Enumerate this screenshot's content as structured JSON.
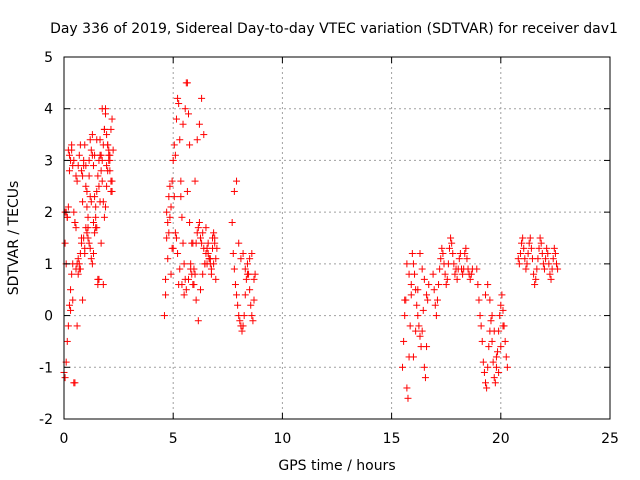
{
  "chart_data": {
    "type": "scatter",
    "title": "Day 336 of 2019, Sidereal Day-to-day VTEC variation (SDTVAR) for receiver dav1",
    "xlabel": "GPS time / hours",
    "ylabel": "SDTVAR / TECUs",
    "xlim": [
      0,
      25
    ],
    "ylim": [
      -2,
      5
    ],
    "xticks": [
      0,
      5,
      10,
      15,
      20,
      25
    ],
    "yticks": [
      -2,
      -1,
      0,
      1,
      2,
      3,
      4,
      5
    ],
    "grid": true,
    "marker": "+",
    "color": "#ff0000",
    "series": [
      {
        "name": "dav1",
        "x": [
          0.0,
          0.05,
          0.1,
          0.15,
          0.2,
          0.25,
          0.3,
          0.35,
          0.4,
          0.45,
          0.5,
          0.55,
          0.6,
          0.65,
          0.7,
          0.75,
          0.8,
          0.85,
          0.9,
          0.95,
          1.0,
          1.05,
          1.1,
          1.15,
          1.2,
          1.25,
          1.3,
          1.35,
          1.4,
          1.45,
          1.5,
          1.55,
          1.6,
          1.65,
          1.7,
          1.75,
          1.8,
          1.85,
          1.9,
          1.95,
          2.0,
          2.05,
          2.1,
          2.15,
          2.2,
          2.25,
          0.05,
          0.1,
          0.15,
          0.2,
          0.25,
          0.3,
          0.35,
          0.4,
          0.45,
          0.5,
          0.55,
          0.6,
          0.65,
          0.7,
          0.75,
          0.8,
          0.85,
          0.9,
          0.95,
          1.0,
          1.05,
          1.1,
          1.15,
          1.2,
          1.25,
          1.3,
          1.35,
          1.4,
          1.45,
          1.5,
          1.55,
          1.6,
          1.65,
          1.7,
          1.75,
          1.8,
          1.85,
          1.9,
          1.95,
          2.0,
          2.05,
          2.1,
          2.15,
          2.2,
          0.1,
          0.2,
          0.3,
          0.4,
          0.5,
          0.6,
          0.7,
          0.8,
          0.9,
          1.0,
          1.1,
          1.2,
          1.3,
          1.4,
          1.5,
          1.6,
          1.7,
          1.8,
          1.9,
          2.0,
          2.1,
          2.2,
          0.05,
          0.15,
          0.25,
          0.35,
          0.45,
          0.55,
          0.65,
          0.75,
          0.85,
          0.95,
          1.05,
          1.15,
          1.25,
          1.35,
          1.45,
          1.55,
          1.65,
          1.75,
          1.85,
          1.95,
          2.05,
          2.15,
          4.6,
          4.65,
          4.7,
          4.75,
          4.8,
          4.85,
          4.9,
          4.95,
          5.0,
          5.05,
          5.1,
          5.15,
          5.2,
          5.25,
          5.3,
          5.35,
          5.4,
          5.45,
          5.5,
          5.55,
          5.6,
          5.65,
          5.7,
          5.75,
          5.8,
          5.85,
          5.9,
          5.95,
          6.0,
          6.05,
          6.1,
          6.15,
          6.2,
          6.25,
          6.3,
          6.35,
          6.4,
          6.45,
          6.5,
          6.55,
          6.6,
          6.65,
          6.7,
          6.75,
          6.8,
          6.85,
          6.9,
          6.95,
          7.0,
          4.65,
          4.75,
          4.85,
          4.95,
          5.05,
          5.15,
          5.25,
          5.35,
          5.45,
          5.55,
          5.65,
          5.75,
          5.85,
          5.95,
          6.05,
          6.15,
          6.25,
          6.35,
          6.45,
          6.55,
          6.65,
          6.75,
          6.85,
          6.95,
          4.7,
          4.8,
          4.9,
          5.0,
          5.1,
          5.2,
          5.3,
          5.4,
          5.5,
          5.6,
          5.7,
          5.8,
          5.9,
          6.0,
          6.1,
          6.2,
          6.3,
          6.4,
          6.5,
          6.6,
          6.7,
          6.8,
          6.9,
          7.7,
          7.75,
          7.8,
          7.85,
          7.9,
          7.95,
          8.0,
          8.05,
          8.1,
          8.15,
          8.2,
          8.25,
          8.3,
          8.35,
          8.4,
          8.45,
          8.5,
          8.55,
          8.6,
          8.65,
          8.7,
          8.75,
          7.8,
          7.9,
          8.0,
          8.1,
          8.2,
          8.3,
          8.4,
          8.5,
          8.6,
          8.7,
          15.5,
          15.55,
          15.6,
          15.65,
          15.7,
          15.75,
          15.8,
          15.85,
          15.9,
          15.95,
          16.0,
          16.05,
          16.1,
          16.15,
          16.2,
          16.25,
          16.3,
          16.35,
          16.4,
          16.45,
          16.5,
          16.55,
          16.6,
          16.65,
          16.7,
          15.6,
          15.7,
          15.8,
          15.9,
          16.0,
          16.1,
          16.2,
          16.3,
          16.4,
          16.5,
          16.6,
          16.9,
          16.95,
          17.0,
          17.05,
          17.1,
          17.15,
          17.2,
          17.25,
          17.3,
          17.35,
          17.4,
          17.45,
          17.5,
          17.55,
          17.6,
          17.65,
          17.7,
          17.75,
          17.8,
          17.85,
          17.9,
          17.95,
          18.0,
          18.05,
          18.1,
          18.15,
          18.2,
          18.25,
          18.3,
          18.35,
          18.4,
          18.45,
          18.5,
          18.55,
          18.6,
          18.65,
          18.7,
          18.9,
          18.95,
          19.0,
          19.05,
          19.1,
          19.15,
          19.2,
          19.25,
          19.3,
          19.35,
          19.4,
          19.45,
          19.5,
          19.55,
          19.6,
          19.65,
          19.7,
          19.75,
          19.8,
          19.85,
          19.9,
          19.95,
          20.0,
          20.05,
          20.1,
          20.15,
          20.2,
          20.25,
          20.3,
          19.3,
          19.4,
          19.5,
          19.6,
          19.7,
          19.8,
          19.9,
          20.0,
          20.1,
          20.8,
          20.85,
          20.9,
          20.95,
          21.0,
          21.05,
          21.1,
          21.15,
          21.2,
          21.25,
          21.3,
          21.35,
          21.4,
          21.45,
          21.5,
          21.55,
          21.6,
          21.65,
          21.7,
          21.75,
          21.8,
          21.85,
          21.9,
          21.95,
          22.0,
          22.05,
          22.1,
          22.15,
          22.2,
          22.25,
          22.3,
          22.35,
          22.4,
          22.45,
          22.5,
          22.55,
          22.6
        ],
        "y": [
          -1.1,
          1.4,
          2.0,
          1.9,
          3.2,
          3.1,
          3.0,
          3.2,
          2.9,
          2.0,
          1.8,
          1.7,
          2.6,
          2.9,
          3.1,
          3.3,
          2.8,
          2.7,
          1.5,
          1.2,
          1.7,
          2.1,
          1.9,
          3.0,
          3.4,
          3.2,
          3.1,
          2.9,
          2.3,
          1.9,
          1.7,
          0.6,
          0.7,
          2.2,
          2.8,
          3.0,
          3.3,
          3.6,
          3.9,
          3.5,
          3.3,
          3.1,
          2.8,
          2.6,
          2.4,
          3.2,
          -1.2,
          -0.9,
          -0.5,
          -0.2,
          0.2,
          0.5,
          0.8,
          1.0,
          -1.3,
          -1.3,
          0.9,
          1.0,
          0.8,
          0.9,
          1.2,
          1.5,
          2.2,
          3.0,
          3.3,
          2.9,
          2.4,
          1.7,
          1.4,
          1.3,
          1.1,
          1.0,
          1.2,
          1.6,
          2.1,
          2.4,
          2.7,
          3.0,
          3.4,
          3.1,
          2.6,
          2.2,
          1.9,
          2.1,
          2.5,
          2.8,
          3.0,
          3.1,
          3.6,
          3.8,
          1.0,
          2.1,
          0.1,
          0.3,
          1.8,
          -0.2,
          1.0,
          1.4,
          2.9,
          2.5,
          1.5,
          2.3,
          3.5,
          3.1,
          3.4,
          2.5,
          1.4,
          0.6,
          4.0,
          3.3,
          3.0,
          2.6,
          2.0,
          1.9,
          2.8,
          3.3,
          3.0,
          2.7,
          1.1,
          0.9,
          0.3,
          1.3,
          1.6,
          2.7,
          2.2,
          1.8,
          1.7,
          0.7,
          3.1,
          4.0,
          3.6,
          2.9,
          3.2,
          2.4,
          0.0,
          0.7,
          1.5,
          1.8,
          2.3,
          2.5,
          2.1,
          1.3,
          3.0,
          3.3,
          3.1,
          3.8,
          4.2,
          4.1,
          3.4,
          2.6,
          1.9,
          1.4,
          1.0,
          0.7,
          4.5,
          4.5,
          3.9,
          3.3,
          1.0,
          0.8,
          0.6,
          0.6,
          0.8,
          1.4,
          1.6,
          1.7,
          1.8,
          1.5,
          1.4,
          1.6,
          1.3,
          1.0,
          1.2,
          1.0,
          1.4,
          1.1,
          1.0,
          0.9,
          1.5,
          1.6,
          1.4,
          1.1,
          1.3,
          0.4,
          1.1,
          1.9,
          2.6,
          2.3,
          1.5,
          0.6,
          2.3,
          3.7,
          4.0,
          2.4,
          1.8,
          1.4,
          0.9,
          0.3,
          -0.1,
          0.5,
          0.8,
          1.0,
          1.3,
          1.1,
          0.8,
          1.0,
          0.7,
          2.0,
          1.6,
          0.8,
          1.3,
          1.6,
          1.2,
          0.9,
          0.6,
          0.4,
          0.5,
          0.7,
          0.9,
          1.4,
          2.6,
          3.4,
          3.7,
          4.2,
          3.5,
          1.7,
          1.2,
          1.1,
          1.3,
          1.5,
          1.8,
          1.2,
          0.9,
          0.6,
          0.4,
          0.2,
          0.0,
          -0.1,
          -0.2,
          -0.3,
          -0.2,
          0.0,
          0.4,
          0.7,
          1.0,
          0.8,
          0.5,
          0.2,
          0.0,
          -0.1,
          0.3,
          0.8,
          2.4,
          2.6,
          1.4,
          1.1,
          1.2,
          0.9,
          0.8,
          1.1,
          1.2,
          0.7,
          -1.0,
          -0.5,
          0.0,
          0.3,
          -1.4,
          -1.6,
          -0.8,
          -0.2,
          0.6,
          1.2,
          1.0,
          0.8,
          0.5,
          0.2,
          0.0,
          -0.2,
          -0.4,
          -0.6,
          -0.3,
          0.1,
          -1.0,
          -1.2,
          -0.6,
          0.3,
          0.6,
          0.3,
          1.0,
          0.8,
          0.4,
          -0.8,
          -0.3,
          0.5,
          1.2,
          0.9,
          0.7,
          0.4,
          0.8,
          0.5,
          0.2,
          0.0,
          0.3,
          0.6,
          0.9,
          1.1,
          1.3,
          1.2,
          1.0,
          0.8,
          0.6,
          0.7,
          1.0,
          1.3,
          1.5,
          1.4,
          1.2,
          1.0,
          0.8,
          0.9,
          0.7,
          0.9,
          1.1,
          1.2,
          0.9,
          0.8,
          0.9,
          1.2,
          1.3,
          1.1,
          0.9,
          0.8,
          0.7,
          0.8,
          0.9,
          0.9,
          0.6,
          0.3,
          0.0,
          -0.2,
          -0.5,
          -0.9,
          -1.1,
          -1.3,
          -1.4,
          -1.0,
          -0.6,
          -0.3,
          -0.1,
          -0.5,
          -0.9,
          -1.2,
          -1.3,
          -1.0,
          -0.7,
          -0.3,
          0.0,
          0.2,
          0.4,
          0.1,
          -0.2,
          -0.5,
          -0.8,
          -1.0,
          0.4,
          0.6,
          0.3,
          0.0,
          -0.3,
          -0.8,
          -1.1,
          -0.6,
          -0.2,
          1.1,
          1.0,
          1.2,
          1.4,
          1.5,
          1.3,
          1.1,
          0.9,
          1.0,
          1.2,
          1.4,
          1.5,
          1.3,
          1.1,
          0.8,
          0.6,
          0.7,
          0.9,
          1.1,
          1.3,
          1.5,
          1.4,
          1.2,
          1.0,
          0.9,
          1.1,
          1.3,
          1.2,
          1.0,
          0.8,
          0.7,
          0.9,
          1.1,
          1.3,
          1.2,
          1.0,
          0.9
        ]
      }
    ]
  }
}
